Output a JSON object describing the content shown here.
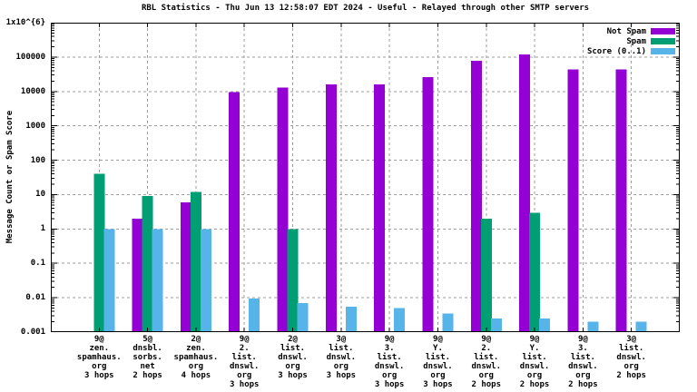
{
  "chart_data": {
    "type": "bar",
    "title": "RBL Statistics - Thu Jun 13 12:58:07 EDT 2024 - Useful - Relayed through other SMTP servers",
    "ylabel": "Message Count or Spam Score",
    "xlabel": "",
    "y_scale": "log",
    "ylim": [
      0.001,
      1000000
    ],
    "y_tick_labels": [
      "1x10^{6}",
      "100000",
      "10000",
      "1000",
      "100",
      "10",
      "1",
      "0.1",
      "0.01",
      "0.001"
    ],
    "grid": true,
    "legend_position": "top-right-inside",
    "categories": [
      [
        "9@",
        "zen.",
        "spamhaus.",
        "org",
        "3 hops"
      ],
      [
        "5@",
        "dnsbl.",
        "sorbs.",
        "net",
        "2 hops"
      ],
      [
        "2@",
        "zen.",
        "spamhaus.",
        "org",
        "4 hops"
      ],
      [
        "9@",
        "2.",
        "list.",
        "dnswl.",
        "org",
        "3 hops"
      ],
      [
        "2@",
        "list.",
        "dnswl.",
        "org",
        "3 hops"
      ],
      [
        "3@",
        "list.",
        "dnswl.",
        "org",
        "3 hops"
      ],
      [
        "9@",
        "3.",
        "list.",
        "dnswl.",
        "org",
        "3 hops"
      ],
      [
        "9@",
        "Y.",
        "list.",
        "dnswl.",
        "org",
        "3 hops"
      ],
      [
        "9@",
        "2.",
        "list.",
        "dnswl.",
        "org",
        "2 hops"
      ],
      [
        "9@",
        "Y.",
        "list.",
        "dnswl.",
        "org",
        "2 hops"
      ],
      [
        "9@",
        "3.",
        "list.",
        "dnswl.",
        "org",
        "2 hops"
      ],
      [
        "3@",
        "list.",
        "dnswl.",
        "org",
        "2 hops"
      ]
    ],
    "series": [
      {
        "name": "Not Spam",
        "color": "#9400D3",
        "values": [
          0,
          2,
          6,
          9500,
          13000,
          16000,
          16000,
          26000,
          78000,
          118000,
          44000,
          44000
        ]
      },
      {
        "name": "Spam",
        "color": "#009E73",
        "values": [
          40,
          9,
          12,
          0,
          1,
          0,
          0,
          0,
          2,
          3,
          0,
          0
        ]
      },
      {
        "name": "Score (0..1)",
        "color": "#56B4E9",
        "values": [
          1.0,
          1.0,
          1.0,
          0.0095,
          0.007,
          0.0055,
          0.005,
          0.0035,
          0.0025,
          0.0025,
          0.002,
          0.002
        ]
      }
    ]
  },
  "colors": {
    "background": "#FFFFFF",
    "text": "#000000",
    "grid": "#9E9E9E",
    "border": "#000000",
    "not_spam": "#9400D3",
    "spam": "#009E73",
    "score": "#56B4E9"
  }
}
